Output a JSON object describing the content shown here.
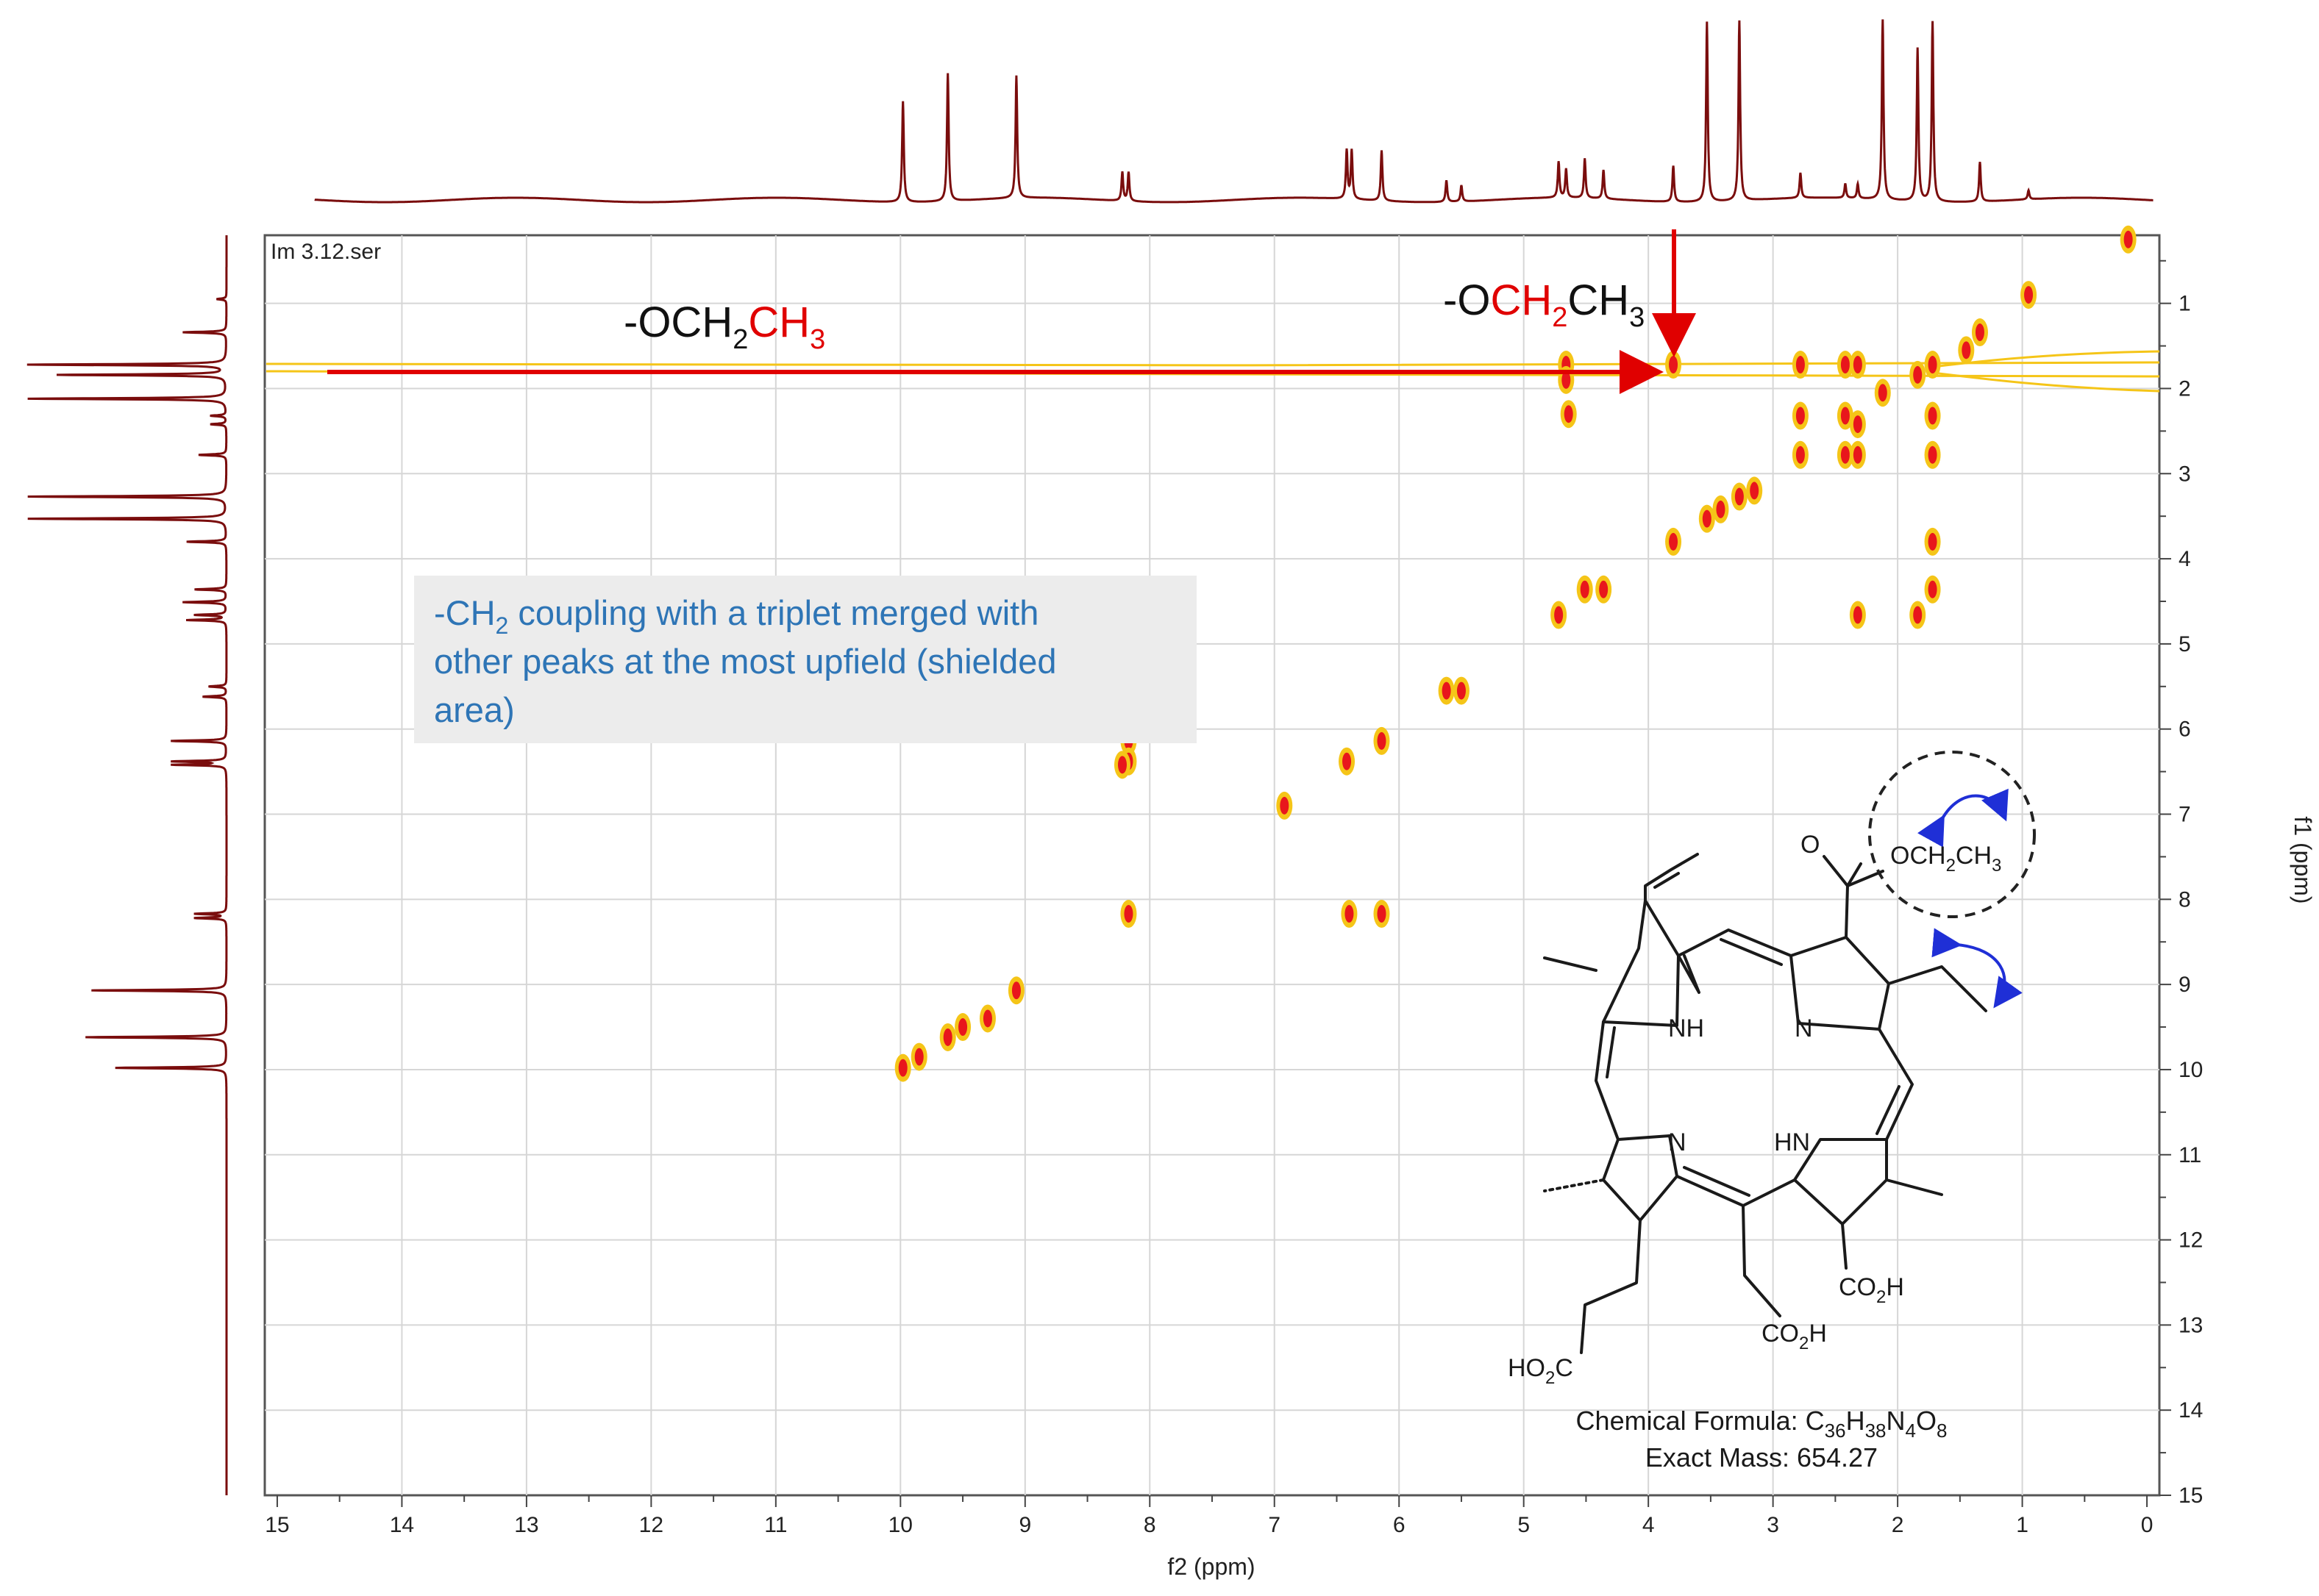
{
  "chart_data": {
    "type": "heatmap",
    "spectrum_type": "2D COSY",
    "dataset_label": "Im 3.12.ser",
    "xlabel": "f2 (ppm)",
    "ylabel": "f1 (ppm)",
    "xlim": [
      15.1,
      -0.1
    ],
    "ylim": [
      15.0,
      0.2
    ],
    "x_ticks": [
      15,
      14,
      13,
      12,
      11,
      10,
      9,
      8,
      7,
      6,
      5,
      4,
      3,
      2,
      1,
      0
    ],
    "y_ticks": [
      1,
      2,
      3,
      4,
      5,
      6,
      7,
      8,
      9,
      10,
      11,
      12,
      13,
      14,
      15
    ],
    "grid": true,
    "colors": {
      "contour_outer": "#f5c518",
      "contour_inner": "#e8161c",
      "projection": "#7a0d0d",
      "annotation_red": "#e00000",
      "note_text": "#2e75b6",
      "note_bg": "#ececec",
      "curved_arrow": "#1f2fd6"
    },
    "projection_peaks": [
      {
        "ppm": 9.98,
        "h": 0.56
      },
      {
        "ppm": 9.62,
        "h": 0.71
      },
      {
        "ppm": 9.07,
        "h": 0.68
      },
      {
        "ppm": 8.22,
        "h": 0.16
      },
      {
        "ppm": 8.17,
        "h": 0.16
      },
      {
        "ppm": 6.42,
        "h": 0.27
      },
      {
        "ppm": 6.38,
        "h": 0.27
      },
      {
        "ppm": 6.14,
        "h": 0.28
      },
      {
        "ppm": 5.62,
        "h": 0.12
      },
      {
        "ppm": 5.5,
        "h": 0.09
      },
      {
        "ppm": 4.72,
        "h": 0.2
      },
      {
        "ppm": 4.66,
        "h": 0.16
      },
      {
        "ppm": 4.51,
        "h": 0.22
      },
      {
        "ppm": 4.36,
        "h": 0.16
      },
      {
        "ppm": 3.8,
        "h": 0.2
      },
      {
        "ppm": 3.53,
        "h": 1.0
      },
      {
        "ppm": 3.27,
        "h": 1.0
      },
      {
        "ppm": 2.78,
        "h": 0.14
      },
      {
        "ppm": 2.42,
        "h": 0.08
      },
      {
        "ppm": 2.32,
        "h": 0.08
      },
      {
        "ppm": 2.12,
        "h": 1.0
      },
      {
        "ppm": 1.84,
        "h": 0.85
      },
      {
        "ppm": 1.72,
        "h": 1.0
      },
      {
        "ppm": 1.34,
        "h": 0.22
      },
      {
        "ppm": 0.95,
        "h": 0.05
      }
    ],
    "cross_peaks": [
      [
        3.8,
        1.72
      ],
      [
        4.66,
        1.72
      ],
      [
        4.66,
        1.9
      ],
      [
        4.64,
        2.3
      ],
      [
        2.78,
        1.72
      ],
      [
        2.78,
        2.32
      ],
      [
        2.78,
        2.78
      ],
      [
        2.42,
        1.72
      ],
      [
        2.32,
        1.72
      ],
      [
        2.42,
        2.32
      ],
      [
        2.32,
        2.42
      ],
      [
        2.42,
        2.78
      ],
      [
        2.32,
        2.78
      ],
      [
        2.12,
        2.05
      ],
      [
        1.84,
        1.84
      ],
      [
        1.72,
        1.72
      ],
      [
        1.72,
        2.32
      ],
      [
        1.72,
        2.78
      ],
      [
        1.45,
        1.55
      ],
      [
        1.34,
        1.34
      ],
      [
        0.95,
        0.9
      ],
      [
        0.15,
        0.25
      ],
      [
        3.8,
        3.8
      ],
      [
        3.53,
        3.53
      ],
      [
        3.42,
        3.42
      ],
      [
        3.27,
        3.27
      ],
      [
        3.15,
        3.2
      ],
      [
        4.72,
        4.66
      ],
      [
        4.51,
        4.36
      ],
      [
        4.36,
        4.36
      ],
      [
        1.72,
        3.8
      ],
      [
        1.84,
        4.66
      ],
      [
        2.32,
        4.66
      ],
      [
        1.72,
        4.36
      ],
      [
        5.62,
        5.55
      ],
      [
        5.5,
        5.55
      ],
      [
        8.17,
        6.14
      ],
      [
        8.17,
        6.38
      ],
      [
        8.22,
        6.42
      ],
      [
        6.42,
        6.38
      ],
      [
        6.14,
        6.14
      ],
      [
        6.92,
        6.9
      ],
      [
        8.17,
        8.17
      ],
      [
        6.4,
        8.17
      ],
      [
        6.14,
        8.17
      ],
      [
        9.98,
        9.98
      ],
      [
        9.62,
        9.62
      ],
      [
        9.07,
        9.07
      ],
      [
        9.3,
        9.4
      ],
      [
        9.85,
        9.85
      ],
      [
        9.5,
        9.5
      ]
    ],
    "annotations": {
      "h1_prefix": "-OCH",
      "h1_sub1": "2",
      "h1_red": "CH",
      "h1_sub2": "3",
      "h2_prefix": "-O",
      "h2_red": "CH",
      "h2_sub1": "2",
      "h2_black": "CH",
      "h2_sub2": "3"
    },
    "note": {
      "line1_a": "-CH",
      "line1_sub": "2",
      "line1_b": " coupling with a triplet merged with",
      "line2": "other peaks at the most upfield (shielded",
      "line3": "area)"
    },
    "structure_labels": {
      "o_carbonyl": "O",
      "ester": "OCH",
      "ester_sub1": "2",
      "ester_b": "CH",
      "ester_sub2": "3",
      "nh_top": "NH",
      "n_top": "N",
      "n_bottom": "N",
      "hn_bottom": "HN",
      "co2h_a": "CO",
      "co2h_a_sub": "2",
      "co2h_a_h": "H",
      "co2h_b": "CO",
      "co2h_b_sub": "2",
      "co2h_b_h": "H",
      "ho2c_a": "HO",
      "ho2c_sub": "2",
      "ho2c_c": "C"
    },
    "formula": {
      "label": "Chemical Formula: C",
      "c": "36",
      "h_label": "H",
      "h": "38",
      "n_label": "N",
      "n": "4",
      "o_label": "O",
      "o": "8"
    },
    "mass": "Exact Mass: 654.27"
  }
}
